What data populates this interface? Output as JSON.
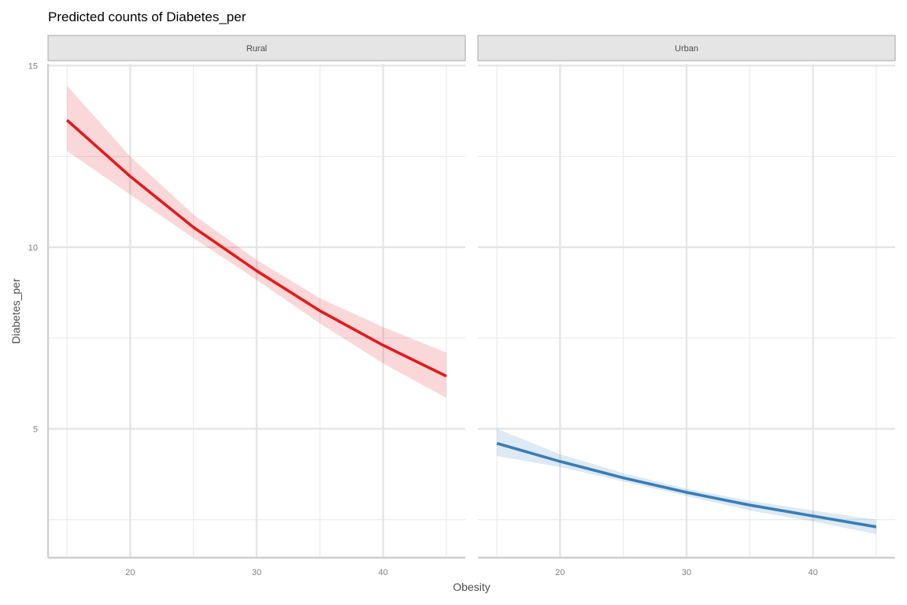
{
  "chart_data": {
    "type": "line",
    "title": "Predicted counts of Diabetes_per",
    "xlabel": "Obesity",
    "ylabel": "Diabetes_per",
    "xlim": [
      13.5,
      46.5
    ],
    "ylim": [
      1.45,
      15.05
    ],
    "x_ticks": [
      20,
      30,
      40
    ],
    "x_tick_labels": [
      "20",
      "30",
      "40"
    ],
    "x_minor_ticks": [
      15,
      25,
      35,
      45
    ],
    "y_ticks": [
      5,
      10,
      15
    ],
    "y_tick_labels": [
      "5",
      "10",
      "15"
    ],
    "y_minor_ticks": [
      2.5,
      7.5,
      12.5
    ],
    "grid": true,
    "legend": "none",
    "facets": [
      {
        "label": "Rural",
        "color": "#e41a1c",
        "x": [
          15,
          20,
          25,
          30,
          35,
          40,
          45
        ],
        "y": [
          13.5,
          11.95,
          10.55,
          9.35,
          8.25,
          7.3,
          6.45
        ],
        "lower": [
          12.65,
          11.45,
          10.25,
          9.1,
          7.9,
          6.8,
          5.85
        ],
        "upper": [
          14.45,
          12.5,
          10.9,
          9.65,
          8.6,
          7.8,
          7.1
        ]
      },
      {
        "label": "Urban",
        "color": "#377eb8",
        "x": [
          15,
          20,
          25,
          30,
          35,
          40,
          45
        ],
        "y": [
          4.6,
          4.1,
          3.65,
          3.25,
          2.9,
          2.6,
          2.3
        ],
        "lower": [
          4.25,
          3.95,
          3.55,
          3.15,
          2.75,
          2.45,
          2.1
        ],
        "upper": [
          5.0,
          4.3,
          3.78,
          3.35,
          3.02,
          2.75,
          2.5
        ]
      }
    ]
  }
}
